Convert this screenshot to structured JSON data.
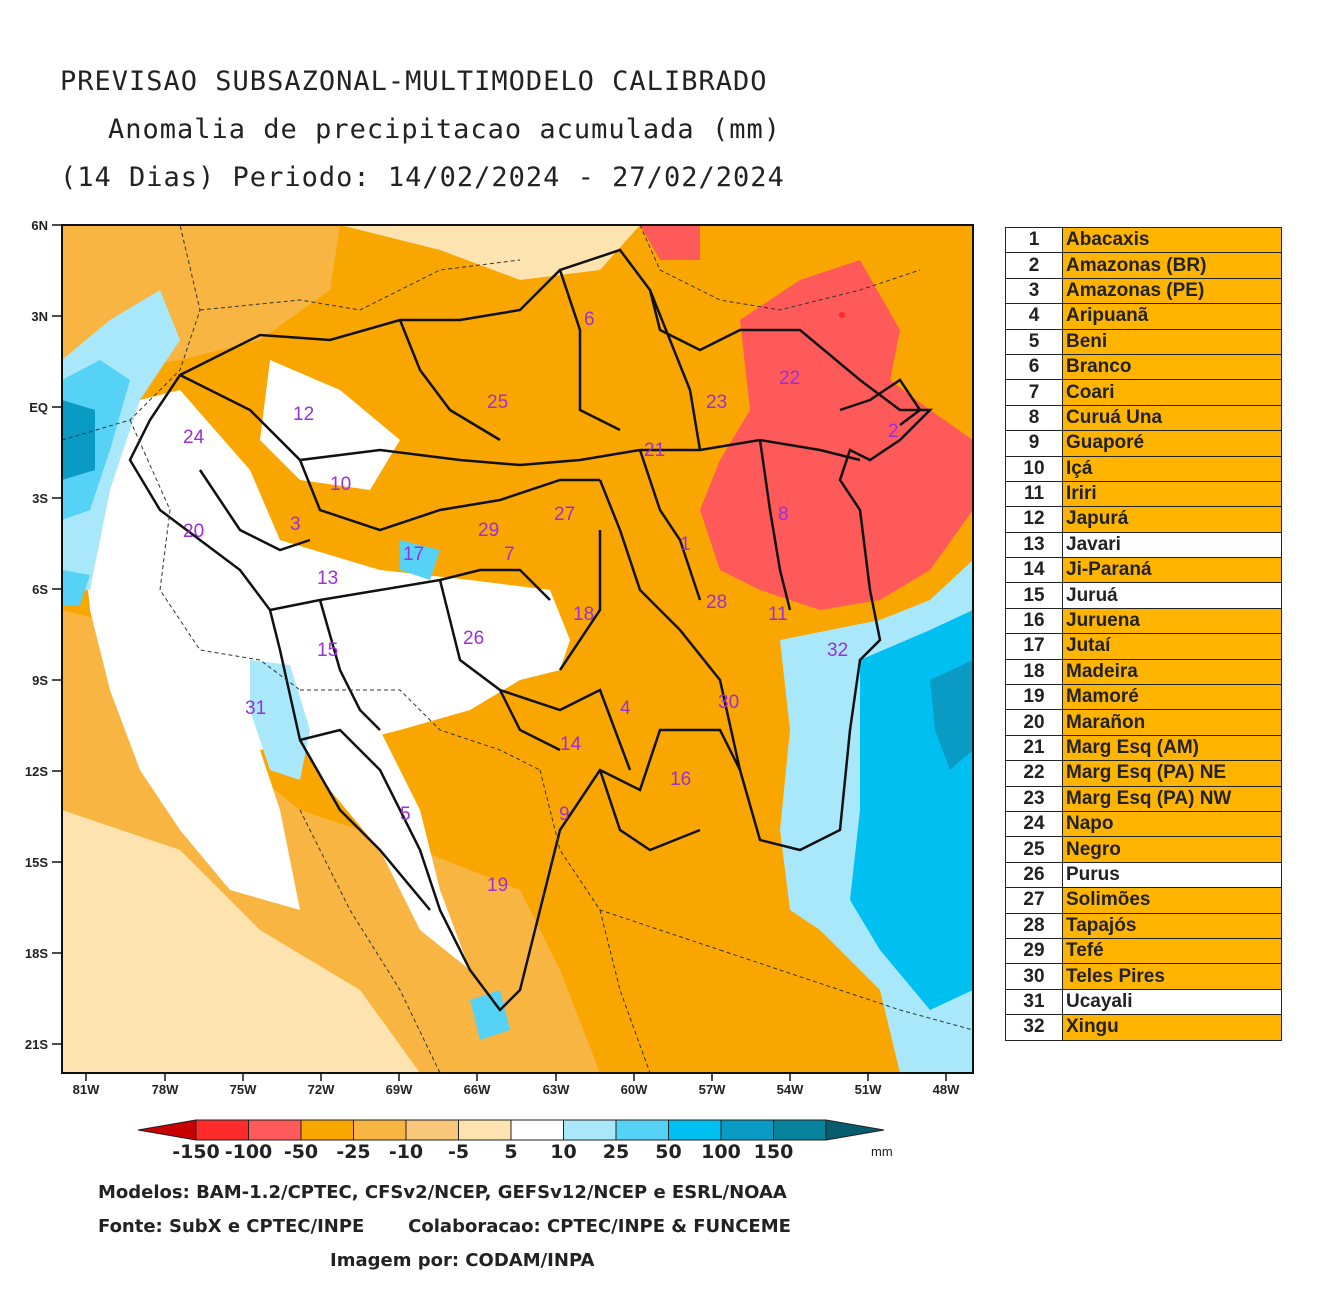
{
  "title": {
    "line1": "PREVISAO SUBSAZONAL-MULTIMODELO CALIBRADO",
    "line2": "Anomalia de precipitacao acumulada (mm)",
    "line3": "(14 Dias) Periodo: 14/02/2024 - 27/02/2024"
  },
  "axes": {
    "lat_labels": [
      "6N",
      "3N",
      "EQ",
      "3S",
      "6S",
      "9S",
      "12S",
      "15S",
      "18S",
      "21S"
    ],
    "lon_labels": [
      "81W",
      "78W",
      "75W",
      "72W",
      "69W",
      "66W",
      "63W",
      "60W",
      "57W",
      "54W",
      "51W",
      "48W"
    ]
  },
  "basins": [
    {
      "num": "1",
      "name": "Abacaxis",
      "shaded": true
    },
    {
      "num": "2",
      "name": "Amazonas (BR)",
      "shaded": true
    },
    {
      "num": "3",
      "name": "Amazonas (PE)",
      "shaded": true
    },
    {
      "num": "4",
      "name": "Aripuanã",
      "shaded": true
    },
    {
      "num": "5",
      "name": "Beni",
      "shaded": true
    },
    {
      "num": "6",
      "name": "Branco",
      "shaded": true
    },
    {
      "num": "7",
      "name": "Coari",
      "shaded": true
    },
    {
      "num": "8",
      "name": "Curuá Una",
      "shaded": true
    },
    {
      "num": "9",
      "name": "Guaporé",
      "shaded": true
    },
    {
      "num": "10",
      "name": "Içá",
      "shaded": true
    },
    {
      "num": "11",
      "name": "Iriri",
      "shaded": true
    },
    {
      "num": "12",
      "name": "Japurá",
      "shaded": true
    },
    {
      "num": "13",
      "name": "Javari",
      "shaded": false
    },
    {
      "num": "14",
      "name": "Ji-Paraná",
      "shaded": true
    },
    {
      "num": "15",
      "name": "Juruá",
      "shaded": false
    },
    {
      "num": "16",
      "name": "Juruena",
      "shaded": true
    },
    {
      "num": "17",
      "name": "Jutaí",
      "shaded": true
    },
    {
      "num": "18",
      "name": "Madeira",
      "shaded": true
    },
    {
      "num": "19",
      "name": "Mamoré",
      "shaded": true
    },
    {
      "num": "20",
      "name": "Marañon",
      "shaded": true
    },
    {
      "num": "21",
      "name": "Marg Esq (AM)",
      "shaded": true
    },
    {
      "num": "22",
      "name": "Marg Esq (PA) NE",
      "shaded": true
    },
    {
      "num": "23",
      "name": "Marg Esq (PA) NW",
      "shaded": true
    },
    {
      "num": "24",
      "name": "Napo",
      "shaded": true
    },
    {
      "num": "25",
      "name": "Negro",
      "shaded": true
    },
    {
      "num": "26",
      "name": "Purus",
      "shaded": false
    },
    {
      "num": "27",
      "name": "Solimões",
      "shaded": true
    },
    {
      "num": "28",
      "name": "Tapajós",
      "shaded": true
    },
    {
      "num": "29",
      "name": "Tefé",
      "shaded": true
    },
    {
      "num": "30",
      "name": "Teles Pires",
      "shaded": true
    },
    {
      "num": "31",
      "name": "Ucayali",
      "shaded": false
    },
    {
      "num": "32",
      "name": "Xingu",
      "shaded": true
    }
  ],
  "colorbar": {
    "labels": [
      "-150",
      "-100",
      "-50",
      "-25",
      "-10",
      "-5",
      "5",
      "10",
      "25",
      "50",
      "100",
      "150"
    ],
    "unit": "mm",
    "colors": [
      "#c90000",
      "#ff2a2a",
      "#ff5a5a",
      "#f9a600",
      "#f9b542",
      "#f9c77a",
      "#fce3b0",
      "#ffffff",
      "#a9e8fb",
      "#55d2f5",
      "#00bff1",
      "#0a9bc4",
      "#07819c",
      "#075d6e"
    ]
  },
  "colors": {
    "table_highlight": "#ffb400",
    "basin_label": "#9b2fd9"
  },
  "credits": {
    "models": "Modelos: BAM-1.2/CPTEC, CFSv2/NCEP, GEFSv12/NCEP e ESRL/NOAA",
    "source": "Fonte: SubX e CPTEC/INPE       Colaboracao: CPTEC/INPE & FUNCEME",
    "image_by": "Imagem por: CODAM/INPA"
  }
}
